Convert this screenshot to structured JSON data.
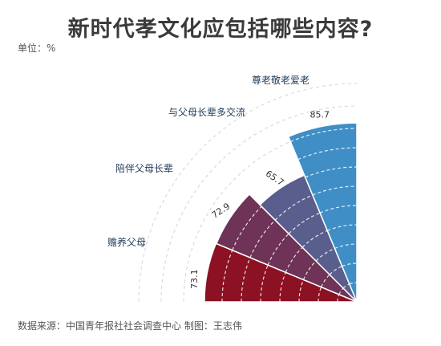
{
  "title": "新时代孝文化应包括哪些内容?",
  "unit_label": "单位：%",
  "source": "数据来源：中国青年报社社会调查中心 制图：王志伟",
  "chart_data": {
    "type": "polar-bar",
    "title": "新时代孝文化应包括哪些内容?",
    "unit": "%",
    "categories": [
      "赡养父母",
      "陪伴父母长辈",
      "与父母长辈多交流",
      "尊老敬老爱老"
    ],
    "values": [
      73.1,
      72.9,
      65.7,
      85.7
    ],
    "value_labels": [
      "73.1",
      "72.9",
      "65.7",
      "85.7"
    ],
    "colors": [
      "#8b1123",
      "#6e3357",
      "#5a5e8c",
      "#3f8fc6"
    ],
    "max": 100
  }
}
